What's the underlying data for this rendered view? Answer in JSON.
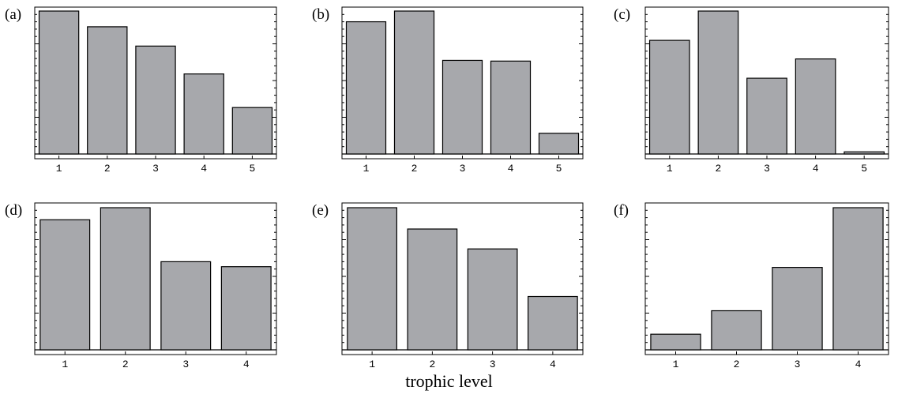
{
  "chart_data": [
    {
      "type": "bar",
      "panel": "(a)",
      "categories": [
        "1",
        "2",
        "3",
        "4",
        "5"
      ],
      "values": [
        1.0,
        0.89,
        0.755,
        0.56,
        0.325
      ],
      "ylim": [
        0,
        1.0
      ]
    },
    {
      "type": "bar",
      "panel": "(b)",
      "categories": [
        "1",
        "2",
        "3",
        "4",
        "5"
      ],
      "values": [
        0.925,
        1.0,
        0.655,
        0.65,
        0.145
      ],
      "ylim": [
        0,
        1.0
      ]
    },
    {
      "type": "bar",
      "panel": "(c)",
      "categories": [
        "1",
        "2",
        "3",
        "4",
        "5"
      ],
      "values": [
        0.795,
        1.0,
        0.53,
        0.665,
        0.015
      ],
      "ylim": [
        0,
        1.0
      ]
    },
    {
      "type": "bar",
      "panel": "(d)",
      "categories": [
        "1",
        "2",
        "3",
        "4"
      ],
      "values": [
        0.915,
        1.0,
        0.62,
        0.585
      ],
      "ylim": [
        0,
        1.0
      ]
    },
    {
      "type": "bar",
      "panel": "(e)",
      "categories": [
        "1",
        "2",
        "3",
        "4"
      ],
      "values": [
        1.0,
        0.85,
        0.71,
        0.375
      ],
      "ylim": [
        0,
        1.0
      ]
    },
    {
      "type": "bar",
      "panel": "(f)",
      "categories": [
        "1",
        "2",
        "3",
        "4"
      ],
      "values": [
        0.11,
        0.275,
        0.58,
        1.0
      ],
      "ylim": [
        0,
        1.0
      ]
    }
  ],
  "xlabel": "trophic level"
}
